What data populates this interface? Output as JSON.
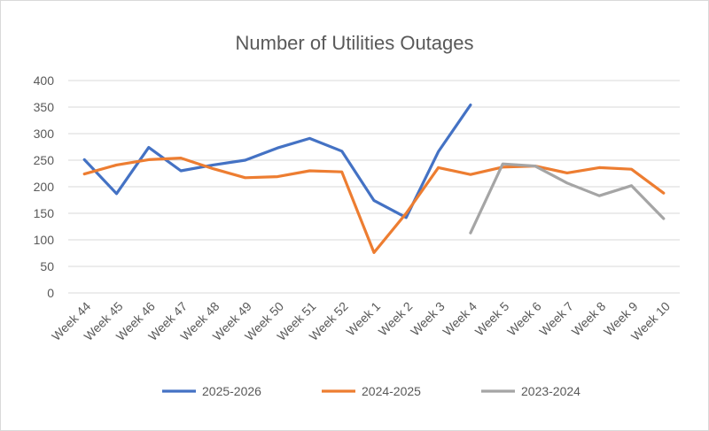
{
  "chart_data": {
    "type": "line",
    "title": "Number of Utilities Outages",
    "xlabel": "",
    "ylabel": "",
    "ylim": [
      0,
      400
    ],
    "yticks": [
      0,
      50,
      100,
      150,
      200,
      250,
      300,
      350,
      400
    ],
    "grid": true,
    "legend_position": "bottom",
    "categories": [
      "Week 44",
      "Week 45",
      "Week 46",
      "Week 47",
      "Week 48",
      "Week 49",
      "Week 50",
      "Week 51",
      "Week 52",
      "Week 1",
      "Week 2",
      "Week 3",
      "Week 4",
      "Week 5",
      "Week 6",
      "Week 7",
      "Week 8",
      "Week 9",
      "Week 10"
    ],
    "series": [
      {
        "name": "2025-2026",
        "color": "#4472c4",
        "values": [
          251,
          187,
          274,
          230,
          241,
          250,
          273,
          291,
          267,
          174,
          142,
          266,
          354,
          null,
          null,
          null,
          null,
          null,
          null
        ]
      },
      {
        "name": "2024-2025",
        "color": "#ed7d31",
        "values": [
          224,
          241,
          251,
          254,
          234,
          217,
          219,
          230,
          228,
          76,
          150,
          236,
          223,
          237,
          239,
          226,
          236,
          233,
          188
        ]
      },
      {
        "name": "2023-2024",
        "color": "#a5a5a5",
        "values": [
          null,
          null,
          null,
          null,
          null,
          null,
          null,
          null,
          null,
          null,
          null,
          null,
          113,
          243,
          239,
          207,
          183,
          202,
          140
        ]
      }
    ]
  }
}
